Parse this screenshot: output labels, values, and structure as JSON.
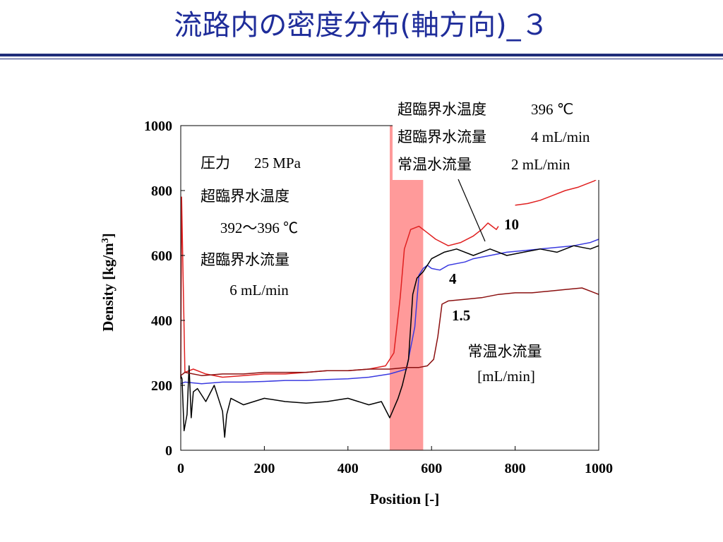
{
  "slide": {
    "title": "流路内の密度分布(軸方向)_３"
  },
  "chart_data": {
    "type": "line",
    "xlabel": "Position [-]",
    "ylabel": "Density [kg/m",
    "ylabel_sup": "3",
    "ylabel_end": "]",
    "xlim": [
      0,
      1000
    ],
    "ylim": [
      0,
      1000
    ],
    "xticks": [
      "0",
      "200",
      "400",
      "600",
      "800",
      "1000"
    ],
    "yticks": [
      "0",
      "200",
      "400",
      "600",
      "800",
      "1000"
    ],
    "shaded_region": {
      "x": [
        500,
        580
      ],
      "color": "#ff9a9a"
    },
    "conditions_left": {
      "pressure_label": "圧力",
      "pressure_value": "25 MPa",
      "temp_label": "超臨界水温度",
      "temp_value": "392〜396 ℃",
      "flow_label": "超臨界水流量",
      "flow_value": "6 mL/min"
    },
    "conditions_right": {
      "temp_label": "超臨界水温度",
      "temp_value": "396 ℃",
      "flow_label": "超臨界水流量",
      "flow_value": "4 mL/min",
      "water_label": "常温水流量",
      "water_value": "2 mL/min"
    },
    "legend_title": "常温水流量",
    "legend_unit": "[mL/min]",
    "series_labels": {
      "red": "10",
      "blue": "4",
      "darkred": "1.5"
    },
    "series": [
      {
        "color": "#e02020",
        "label_ref": "red",
        "x": [
          0,
          2,
          10,
          30,
          60,
          100,
          150,
          200,
          250,
          300,
          350,
          400,
          450,
          490,
          510,
          525,
          535,
          550,
          570,
          590,
          610,
          640,
          670,
          700,
          720,
          735,
          745,
          755,
          760
        ],
        "y": [
          220,
          780,
          240,
          250,
          235,
          225,
          230,
          235,
          235,
          240,
          245,
          245,
          250,
          260,
          300,
          470,
          620,
          680,
          690,
          670,
          650,
          630,
          640,
          660,
          680,
          700,
          690,
          680,
          690
        ]
      },
      {
        "color": "#e02020",
        "label_ref": "red",
        "x": [
          800,
          830,
          860,
          890,
          920,
          950,
          970,
          990,
          1000
        ],
        "y": [
          755,
          760,
          770,
          785,
          800,
          810,
          820,
          830,
          840
        ]
      },
      {
        "color": "#3a3ae0",
        "label_ref": "blue",
        "x": [
          0,
          10,
          50,
          100,
          150,
          200,
          250,
          300,
          350,
          400,
          450,
          500,
          540,
          560,
          570,
          580,
          590,
          600,
          620,
          640,
          680,
          700,
          740,
          780,
          820,
          860,
          900,
          940,
          980,
          1000
        ],
        "y": [
          205,
          210,
          205,
          210,
          210,
          212,
          215,
          215,
          218,
          220,
          225,
          235,
          250,
          380,
          540,
          560,
          570,
          560,
          555,
          570,
          580,
          590,
          600,
          610,
          615,
          620,
          625,
          630,
          640,
          650
        ]
      },
      {
        "color": "#000000",
        "label_ref": "",
        "x": [
          0,
          3,
          8,
          15,
          20,
          25,
          30,
          40,
          60,
          80,
          100,
          105,
          110,
          120,
          150,
          200,
          250,
          300,
          350,
          400,
          450,
          480,
          500,
          520,
          530,
          545,
          555,
          565,
          580,
          600,
          630,
          660,
          700,
          740,
          780,
          820,
          860,
          900,
          940,
          980,
          1000
        ],
        "y": [
          230,
          220,
          60,
          110,
          260,
          100,
          180,
          190,
          150,
          200,
          120,
          40,
          110,
          160,
          140,
          160,
          150,
          145,
          150,
          160,
          140,
          150,
          100,
          160,
          200,
          280,
          480,
          530,
          550,
          590,
          610,
          620,
          600,
          620,
          600,
          610,
          620,
          610,
          630,
          620,
          630
        ]
      },
      {
        "color": "#8b1010",
        "label_ref": "darkred",
        "x": [
          0,
          10,
          50,
          100,
          150,
          200,
          250,
          300,
          350,
          400,
          450,
          500,
          540,
          570,
          590,
          605,
          615,
          625,
          640,
          680,
          720,
          760,
          800,
          840,
          880,
          920,
          960,
          980,
          1000
        ],
        "y": [
          230,
          240,
          230,
          235,
          235,
          240,
          240,
          240,
          245,
          245,
          250,
          250,
          255,
          255,
          260,
          280,
          350,
          450,
          460,
          465,
          470,
          480,
          485,
          485,
          490,
          495,
          500,
          490,
          480
        ]
      }
    ]
  }
}
